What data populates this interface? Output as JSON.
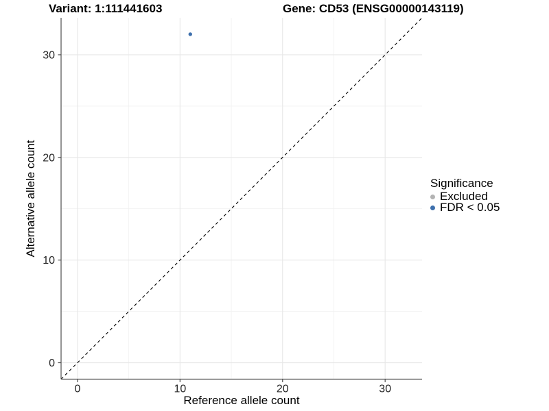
{
  "figure": {
    "title_left": "Variant: 1:111441603",
    "title_right": "Gene: CD53 (ENSG00000143119)"
  },
  "chart_data": {
    "type": "scatter",
    "xlabel": "Reference allele count",
    "ylabel": "Alternative allele count",
    "xlim": [
      -1.6,
      33.6
    ],
    "ylim": [
      -1.6,
      33.6
    ],
    "x_major_ticks": [
      0,
      10,
      20,
      30
    ],
    "y_major_ticks": [
      0,
      10,
      20,
      30
    ],
    "x_minor_ticks": [
      5,
      15,
      25
    ],
    "y_minor_ticks": [
      5,
      15,
      25
    ],
    "grid": true,
    "reference_line": {
      "slope": 1,
      "intercept": 0,
      "style": "dashed",
      "color": "#000000"
    },
    "series": [
      {
        "name": "Excluded",
        "color": "#b3b3b3",
        "points": []
      },
      {
        "name": "FDR < 0.05",
        "color": "#3e70ad",
        "points": [
          {
            "x": 11,
            "y": 32
          }
        ]
      }
    ],
    "legend": {
      "title": "Significance",
      "position": "right",
      "items": [
        {
          "label": "Excluded",
          "color": "#b3b3b3"
        },
        {
          "label": "FDR < 0.05",
          "color": "#3e70ad"
        }
      ]
    },
    "theme": {
      "panel_background": "#ffffff",
      "grid_major_color": "#e7e7e7",
      "grid_minor_color": "#f2f2f2",
      "axis_line_color": "#4d4d4d",
      "tick_label_color": "#262626",
      "point_radius": 2.7
    }
  }
}
